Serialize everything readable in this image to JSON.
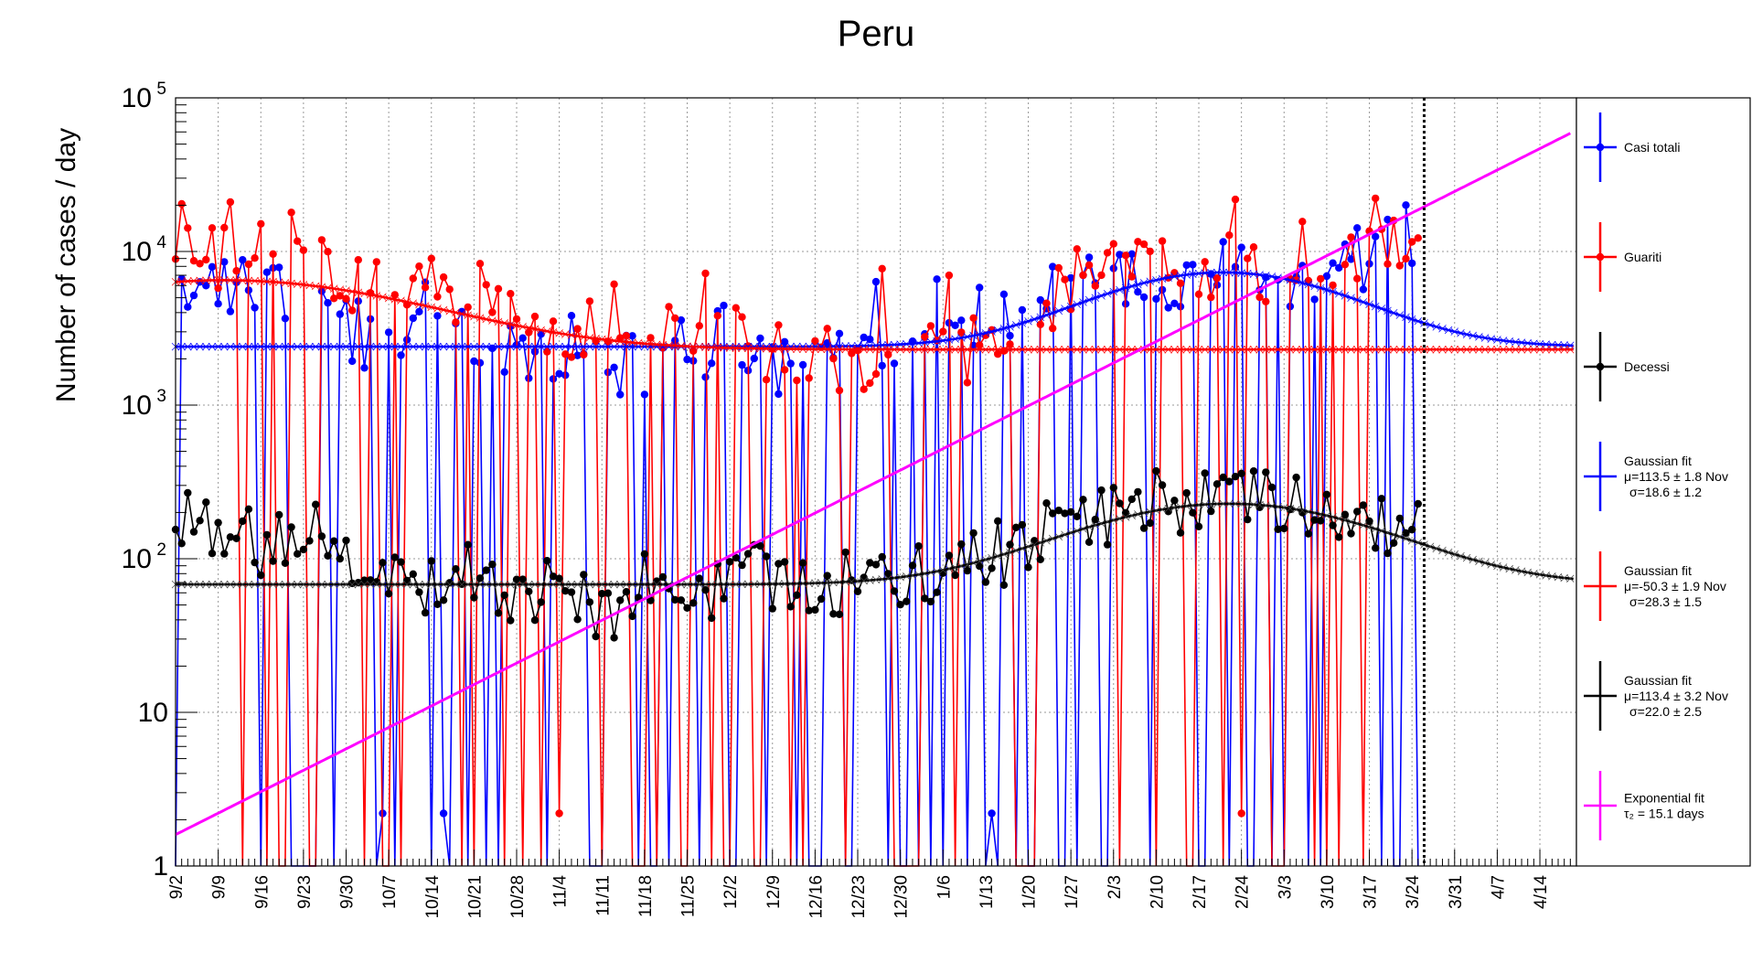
{
  "chart_data": {
    "type": "line",
    "title": "Peru",
    "ylabel": "Number of cases / day",
    "xlabel": "",
    "yscale": "log",
    "ylim": [
      1,
      100000
    ],
    "x_range_days": [
      0,
      230
    ],
    "grid": true,
    "legend_position": "right",
    "x_ticks": [
      {
        "day": 0,
        "label": "9/2"
      },
      {
        "day": 7,
        "label": "9/9"
      },
      {
        "day": 14,
        "label": "9/16"
      },
      {
        "day": 21,
        "label": "9/23"
      },
      {
        "day": 28,
        "label": "9/30"
      },
      {
        "day": 35,
        "label": "10/7"
      },
      {
        "day": 42,
        "label": "10/14"
      },
      {
        "day": 49,
        "label": "10/21"
      },
      {
        "day": 56,
        "label": "10/28"
      },
      {
        "day": 63,
        "label": "11/4"
      },
      {
        "day": 70,
        "label": "11/11"
      },
      {
        "day": 77,
        "label": "11/18"
      },
      {
        "day": 84,
        "label": "11/25"
      },
      {
        "day": 91,
        "label": "12/2"
      },
      {
        "day": 98,
        "label": "12/9"
      },
      {
        "day": 105,
        "label": "12/16"
      },
      {
        "day": 112,
        "label": "12/23"
      },
      {
        "day": 119,
        "label": "12/30"
      },
      {
        "day": 126,
        "label": "1/6"
      },
      {
        "day": 133,
        "label": "1/13"
      },
      {
        "day": 140,
        "label": "1/20"
      },
      {
        "day": 147,
        "label": "1/27"
      },
      {
        "day": 154,
        "label": "2/3"
      },
      {
        "day": 161,
        "label": "2/10"
      },
      {
        "day": 168,
        "label": "2/17"
      },
      {
        "day": 175,
        "label": "2/24"
      },
      {
        "day": 182,
        "label": "3/3"
      },
      {
        "day": 189,
        "label": "3/10"
      },
      {
        "day": 196,
        "label": "3/17"
      },
      {
        "day": 203,
        "label": "3/24"
      },
      {
        "day": 210,
        "label": "3/31"
      },
      {
        "day": 217,
        "label": "4/7"
      },
      {
        "day": 224,
        "label": "4/14"
      }
    ],
    "y_ticks": [
      {
        "value": 1,
        "label": "1"
      },
      {
        "value": 10,
        "label": "10"
      },
      {
        "value": 100,
        "label": "10",
        "exp": "2"
      },
      {
        "value": 1000,
        "label": "10",
        "exp": "3"
      },
      {
        "value": 10000,
        "label": "10",
        "exp": "4"
      },
      {
        "value": 100000,
        "label": "10",
        "exp": "5"
      }
    ],
    "vertical_marker_day": 205,
    "series": [
      {
        "name": "Casi totali",
        "color": "#0000ff",
        "data_last_day": 204,
        "anchors": [
          [
            0,
            7500
          ],
          [
            7,
            5500
          ],
          [
            14,
            5500
          ],
          [
            21,
            6500
          ],
          [
            28,
            3000
          ],
          [
            35,
            2500
          ],
          [
            42,
            2800
          ],
          [
            49,
            3200
          ],
          [
            56,
            2100
          ],
          [
            63,
            2400
          ],
          [
            70,
            2000
          ],
          [
            77,
            1900
          ],
          [
            84,
            2200
          ],
          [
            91,
            2700
          ],
          [
            98,
            1800
          ],
          [
            105,
            2400
          ],
          [
            112,
            1700
          ],
          [
            119,
            2000
          ],
          [
            126,
            2400
          ],
          [
            133,
            3000
          ],
          [
            140,
            4500
          ],
          [
            147,
            5500
          ],
          [
            154,
            6000
          ],
          [
            161,
            7000
          ],
          [
            168,
            7500
          ],
          [
            175,
            7200
          ],
          [
            182,
            6800
          ],
          [
            189,
            6000
          ],
          [
            196,
            10000
          ],
          [
            204,
            14000
          ]
        ]
      },
      {
        "name": "Guariti",
        "color": "#ff0000",
        "data_last_day": 204,
        "anchors": [
          [
            0,
            13000
          ],
          [
            7,
            9000
          ],
          [
            14,
            11000
          ],
          [
            21,
            12000
          ],
          [
            28,
            6000
          ],
          [
            35,
            6000
          ],
          [
            42,
            4500
          ],
          [
            49,
            5500
          ],
          [
            56,
            3500
          ],
          [
            63,
            3500
          ],
          [
            70,
            3000
          ],
          [
            77,
            2800
          ],
          [
            84,
            2600
          ],
          [
            91,
            2800
          ],
          [
            98,
            2000
          ],
          [
            105,
            2200
          ],
          [
            112,
            2000
          ],
          [
            119,
            2200
          ],
          [
            126,
            2000
          ],
          [
            133,
            2500
          ],
          [
            140,
            4000
          ],
          [
            147,
            6000
          ],
          [
            154,
            8000
          ],
          [
            161,
            9000
          ],
          [
            168,
            8000
          ],
          [
            175,
            7500
          ],
          [
            182,
            8000
          ],
          [
            189,
            6500
          ],
          [
            196,
            9000
          ],
          [
            204,
            13000
          ]
        ]
      },
      {
        "name": "Decessi",
        "color": "#000000",
        "data_last_day": 204,
        "anchors": [
          [
            0,
            170
          ],
          [
            7,
            140
          ],
          [
            14,
            120
          ],
          [
            21,
            180
          ],
          [
            28,
            80
          ],
          [
            35,
            90
          ],
          [
            42,
            70
          ],
          [
            49,
            80
          ],
          [
            56,
            60
          ],
          [
            63,
            65
          ],
          [
            70,
            45
          ],
          [
            77,
            70
          ],
          [
            84,
            50
          ],
          [
            91,
            75
          ],
          [
            98,
            75
          ],
          [
            105,
            75
          ],
          [
            112,
            70
          ],
          [
            119,
            65
          ],
          [
            126,
            85
          ],
          [
            133,
            100
          ],
          [
            140,
            130
          ],
          [
            147,
            170
          ],
          [
            154,
            200
          ],
          [
            161,
            230
          ],
          [
            168,
            240
          ],
          [
            175,
            230
          ],
          [
            182,
            210
          ],
          [
            189,
            190
          ],
          [
            196,
            170
          ],
          [
            204,
            150
          ]
        ]
      }
    ],
    "fits": [
      {
        "type": "gaussian",
        "series": "Casi totali",
        "color": "#0000ff",
        "baseline": 2400,
        "amplitude": 4900,
        "mu_day": 172,
        "sigma_days": 18.6
      },
      {
        "type": "gaussian",
        "series": "Guariti",
        "color": "#ff0000",
        "baseline": 2300,
        "amplitude": 4200,
        "mu_day": 8,
        "sigma_days": 28.3
      },
      {
        "type": "gaussian",
        "series": "Decessi",
        "color": "#000000",
        "baseline": 68,
        "amplitude": 160,
        "mu_day": 173,
        "sigma_days": 22.0
      },
      {
        "type": "exponential",
        "color": "#ff00ff",
        "y_at_start": 1.6,
        "start_day": 0,
        "doubling_days": 15.1,
        "end_day": 229
      }
    ],
    "legend": [
      {
        "color": "#0000ff",
        "lines": [
          "Casi totali"
        ],
        "marker": true
      },
      {
        "color": "#ff0000",
        "lines": [
          "Guariti"
        ],
        "marker": true
      },
      {
        "color": "#000000",
        "lines": [
          "Decessi"
        ],
        "marker": true
      },
      {
        "color": "#0000ff",
        "lines": [
          "Gaussian fit",
          "μ=113.5  ± 1.8 Nov",
          "σ=18.6  ± 1.2"
        ],
        "marker": false
      },
      {
        "color": "#ff0000",
        "lines": [
          "Gaussian fit",
          "μ=-50.3  ± 1.9 Nov",
          "σ=28.3  ± 1.5"
        ],
        "marker": false
      },
      {
        "color": "#000000",
        "lines": [
          "Gaussian fit",
          "μ=113.4  ± 3.2 Nov",
          "σ=22.0  ± 2.5"
        ],
        "marker": false
      },
      {
        "color": "#ff00ff",
        "lines": [
          "Exponential fit",
          "τ₂ = 15.1 days"
        ],
        "marker": false
      }
    ]
  }
}
